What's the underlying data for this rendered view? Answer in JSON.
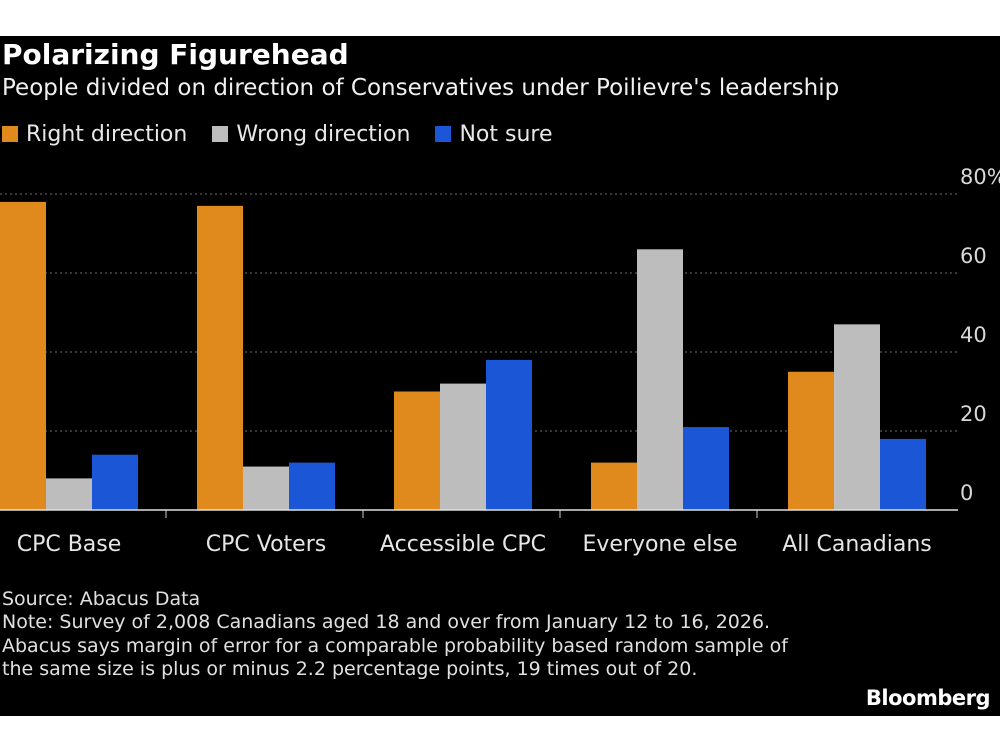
{
  "title": "Polarizing Figurehead",
  "subtitle": "People divided on direction of Conservatives under Poilievre's leadership",
  "source": "Source: Abacus Data",
  "note": "Note: Survey of 2,008 Canadians aged 18 and over from January 12 to 16, 2026. Abacus says margin of error for a comparable probability based random sample of the same size is plus or minus 2.2 percentage points, 19 times out of 20.",
  "brand": "Bloomberg",
  "colors": {
    "background": "#000000",
    "right": "#e08a1e",
    "wrong": "#bdbdbd",
    "not_sure": "#1a56d6",
    "grid": "#6e6e6e"
  },
  "chart_data": {
    "type": "bar",
    "title": "Polarizing Figurehead",
    "subtitle": "People divided on direction of Conservatives under Poilievre's leadership",
    "categories": [
      "CPC Base",
      "CPC Voters",
      "Accessible CPC",
      "Everyone else",
      "All Canadians"
    ],
    "series": [
      {
        "name": "Right direction",
        "color": "#e08a1e",
        "values": [
          78,
          77,
          30,
          12,
          35
        ]
      },
      {
        "name": "Wrong direction",
        "color": "#bdbdbd",
        "values": [
          8,
          11,
          32,
          66,
          47
        ]
      },
      {
        "name": "Not sure",
        "color": "#1a56d6",
        "values": [
          14,
          12,
          38,
          21,
          18
        ]
      }
    ],
    "ylim": [
      0,
      80
    ],
    "yticks": [
      0,
      20,
      40,
      60,
      80
    ],
    "ytick_labels": [
      "0",
      "20",
      "40",
      "60",
      "80%"
    ],
    "y_axis_position": "right",
    "grid": true,
    "legend_position": "top-left"
  }
}
